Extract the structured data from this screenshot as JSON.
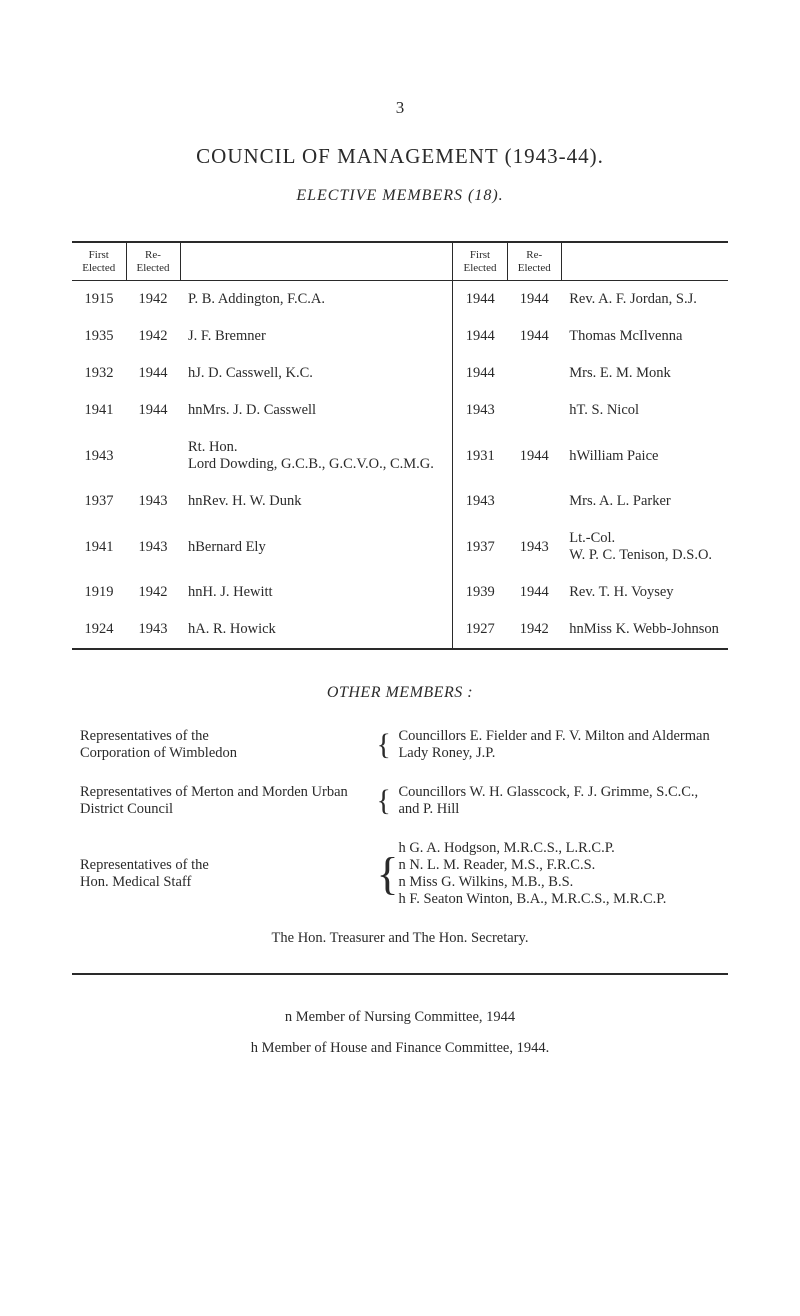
{
  "page_number": "3",
  "title_line1": "COUNCIL OF MANAGEMENT (1943-44).",
  "title_line2": "ELECTIVE MEMBERS (18).",
  "table": {
    "headers": {
      "first_elected_a": "First\nElected",
      "re_elected_a": "Re-\nElected",
      "name_a": "",
      "first_elected_b": "First\nElected",
      "re_elected_b": "Re-\nElected",
      "name_b": ""
    },
    "rows": [
      {
        "fa": "1915",
        "ra": "1942",
        "na": "P. B. Addington, F.C.A.",
        "fb": "1944",
        "rb": "1944",
        "nb": "Rev. A. F. Jordan, S.J."
      },
      {
        "fa": "1935",
        "ra": "1942",
        "na": "J. F. Bremner",
        "fb": "1944",
        "rb": "1944",
        "nb": "Thomas McIlvenna"
      },
      {
        "fa": "1932",
        "ra": "1944",
        "na": "hJ. D. Casswell, K.C.",
        "fb": "1944",
        "rb": "",
        "nb": "Mrs. E. M. Monk"
      },
      {
        "fa": "1941",
        "ra": "1944",
        "na": "hnMrs. J. D. Casswell",
        "fb": "1943",
        "rb": "",
        "nb": "hT. S. Nicol"
      },
      {
        "fa": "1943",
        "ra": "",
        "na": "Rt. Hon.\nLord Dowding, G.C.B., G.C.V.O., C.M.G.",
        "fb": "1931",
        "rb": "1944",
        "nb": "hWilliam Paice"
      },
      {
        "fa": "1937",
        "ra": "1943",
        "na": "hnRev. H. W. Dunk",
        "fb": "1943",
        "rb": "",
        "nb": "Mrs. A. L. Parker"
      },
      {
        "fa": "1941",
        "ra": "1943",
        "na": "hBernard Ely",
        "fb": "1937",
        "rb": "1943",
        "nb": "Lt.-Col.\nW. P. C. Tenison, D.S.O."
      },
      {
        "fa": "1919",
        "ra": "1942",
        "na": "hnH. J. Hewitt",
        "fb": "1939",
        "rb": "1944",
        "nb": "Rev. T. H. Voysey"
      },
      {
        "fa": "1924",
        "ra": "1943",
        "na": "hA. R. Howick",
        "fb": "1927",
        "rb": "1942",
        "nb": "hnMiss K. Webb-Johnson"
      }
    ]
  },
  "other_members_title": "OTHER MEMBERS :",
  "pairs": [
    {
      "left": "Representatives of the\nCorporation of Wimbledon",
      "right": "Councillors E. Fielder and F. V. Milton and Alderman Lady Roney, J.P."
    },
    {
      "left": "Representatives of Merton and Morden Urban District Council",
      "right": "Councillors W. H. Glasscock, F. J. Grimme, S.C.C., and P. Hill"
    },
    {
      "left": "Representatives of the\nHon. Medical Staff",
      "right": "h G. A. Hodgson, M.R.C.S., L.R.C.P.\nn N. L. M. Reader, M.S., F.R.C.S.\nn Miss G. Wilkins, M.B., B.S.\nh F. Seaton Winton, B.A., M.R.C.S., M.R.C.P."
    }
  ],
  "treasurer_line": "The Hon. Treasurer and The Hon. Secretary.",
  "footnote1_prefix": "n",
  "footnote1_rest": " Member of Nursing Committee, 1944",
  "footnote2_prefix": "h",
  "footnote2_rest": " Member of House and Finance Committee, 1944."
}
